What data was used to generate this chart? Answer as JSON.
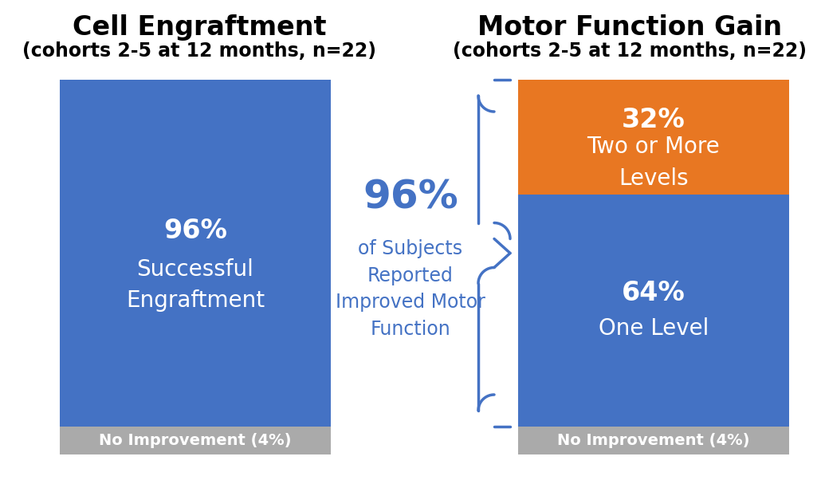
{
  "bg_color": "#ffffff",
  "left_title": "Cell Engraftment",
  "left_subtitle": "(cohorts 2-5 at 12 months, n=22)",
  "right_title": "Motor Function Gain",
  "right_subtitle": "(cohorts 2-5 at 12 months, n=22)",
  "left_bar_color": "#4472C4",
  "left_bar_label1": "96%",
  "left_bar_label2": "Successful\nEngraftment",
  "left_no_improve": "No Improvement (4%)",
  "right_top_color": "#E87722",
  "right_bottom_color": "#4472C4",
  "right_top_label1": "32%",
  "right_top_label2": "Two or More\nLevels",
  "right_bottom_label1": "64%",
  "right_bottom_label2": "One Level",
  "right_no_improve": "No Improvement (4%)",
  "middle_pct_text": "96%",
  "middle_sub_text": "of Subjects\nReported\nImproved Motor\nFunction",
  "blue_text_color": "#4472C4",
  "gray_bar_color": "#AAAAAA",
  "white_color": "#ffffff",
  "title_fontsize": 24,
  "subtitle_fontsize": 17,
  "bar_label_pct_fontsize": 24,
  "bar_label_sub_fontsize": 20,
  "middle_pct_fontsize": 36,
  "middle_sub_fontsize": 17,
  "no_improve_fontsize": 14
}
